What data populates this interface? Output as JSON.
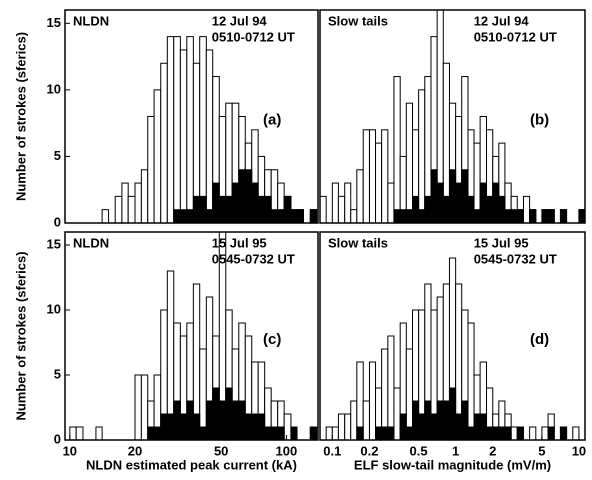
{
  "chart_data": [
    {
      "type": "histogram",
      "label": "NLDN",
      "date": "12 Jul 94",
      "time": "0510-0712 UT",
      "panel": "(a)",
      "ylabel": "Number of strokes (sferics)",
      "xscale": "log",
      "bins": [
        10.0,
        10.7,
        11.5,
        12.3,
        13.2,
        14.1,
        15.1,
        16.2,
        17.4,
        18.6,
        20.0,
        21.4,
        22.9,
        24.5,
        26.3,
        28.2,
        30.2,
        32.4,
        34.7,
        37.2,
        39.8,
        42.7,
        45.7,
        49.0,
        52.5,
        56.2,
        60.3,
        64.6,
        69.2,
        74.1,
        79.4,
        85.1,
        91.2,
        97.7,
        105,
        112,
        120,
        129,
        138
      ],
      "series": [
        {
          "color": "#ffffff",
          "values": [
            0,
            0,
            0,
            0,
            0,
            1,
            0,
            2,
            3,
            2,
            3,
            4,
            8,
            10,
            12,
            14,
            14,
            13,
            14,
            12,
            14,
            13,
            11,
            8,
            9,
            9,
            8,
            6,
            7,
            5,
            4,
            4,
            3,
            2,
            1,
            1,
            0,
            1
          ]
        },
        {
          "color": "#000000",
          "values": [
            0,
            0,
            0,
            0,
            0,
            0,
            0,
            0,
            0,
            0,
            0,
            0,
            0,
            0,
            0,
            0,
            1,
            1,
            1,
            2,
            2,
            1,
            3,
            2,
            2,
            3,
            4,
            4,
            3,
            2,
            2,
            1,
            1,
            2,
            1,
            1,
            0,
            1
          ]
        }
      ],
      "xlim": [
        9.5,
        140
      ],
      "ylim": [
        0,
        16
      ],
      "yticks": [
        0,
        5,
        10,
        15
      ]
    },
    {
      "type": "histogram",
      "label": "Slow tails",
      "date": "12 Jul 94",
      "time": "0510-0712 UT",
      "panel": "(b)",
      "xscale": "log",
      "bins": [
        0.0794,
        0.0891,
        0.1,
        0.112,
        0.126,
        0.141,
        0.158,
        0.178,
        0.2,
        0.224,
        0.251,
        0.282,
        0.316,
        0.355,
        0.398,
        0.447,
        0.501,
        0.562,
        0.631,
        0.708,
        0.794,
        0.891,
        1.0,
        1.12,
        1.26,
        1.41,
        1.58,
        1.78,
        2.0,
        2.24,
        2.51,
        2.82,
        3.16,
        3.55,
        3.98,
        4.47,
        5.01,
        5.62,
        6.31,
        7.08,
        7.94,
        8.91,
        10.0,
        11.2
      ],
      "series": [
        {
          "color": "#ffffff",
          "values": [
            2,
            0,
            3,
            2,
            3,
            1,
            4,
            7,
            7,
            6,
            7,
            3,
            11,
            5,
            9,
            7,
            10,
            11,
            14,
            16,
            12,
            9,
            8,
            11,
            7,
            6,
            8,
            7,
            5,
            6,
            3,
            2,
            1,
            2,
            1,
            0,
            1,
            1,
            0,
            1,
            0,
            0,
            1
          ]
        },
        {
          "color": "#000000",
          "values": [
            0,
            0,
            0,
            0,
            0,
            0,
            0,
            0,
            0,
            0,
            0,
            0,
            1,
            1,
            1,
            2,
            1,
            2,
            4,
            3,
            2,
            4,
            3,
            4,
            2,
            1,
            3,
            2,
            3,
            2,
            1,
            1,
            1,
            0,
            1,
            0,
            1,
            1,
            0,
            1,
            0,
            0,
            1
          ]
        }
      ],
      "xlim": [
        0.0794,
        11.2
      ],
      "ylim": [
        0,
        16
      ]
    },
    {
      "type": "histogram",
      "label": "NLDN",
      "date": "15 Jul 95",
      "time": "0545-0732 UT",
      "panel": "(c)",
      "ylabel": "Number of strokes (sferics)",
      "xlabel": "NLDN estimated peak current (kA)",
      "xscale": "log",
      "bins": [
        10.0,
        10.7,
        11.5,
        12.3,
        13.2,
        14.1,
        15.1,
        16.2,
        17.4,
        18.6,
        20.0,
        21.4,
        22.9,
        24.5,
        26.3,
        28.2,
        30.2,
        32.4,
        34.7,
        37.2,
        39.8,
        42.7,
        45.7,
        49.0,
        52.5,
        56.2,
        60.3,
        64.6,
        69.2,
        74.1,
        79.4,
        85.1,
        91.2,
        97.7,
        105,
        112,
        120,
        129,
        138
      ],
      "series": [
        {
          "color": "#ffffff",
          "values": [
            1,
            1,
            0,
            0,
            1,
            0,
            0,
            0,
            0,
            0,
            5,
            5,
            3,
            5,
            10,
            13,
            9,
            8,
            9,
            12,
            7,
            11,
            8,
            16,
            10,
            7,
            9,
            8,
            6,
            6,
            4,
            3,
            3,
            2,
            1,
            0,
            0,
            1
          ]
        },
        {
          "color": "#000000",
          "values": [
            0,
            0,
            0,
            0,
            0,
            0,
            0,
            0,
            0,
            0,
            0,
            0,
            1,
            1,
            2,
            2,
            3,
            2,
            3,
            2,
            1,
            3,
            4,
            3,
            4,
            3,
            3,
            2,
            2,
            2,
            1,
            1,
            1,
            0,
            1,
            0,
            0,
            1
          ]
        }
      ],
      "xlim": [
        9.5,
        140
      ],
      "ylim": [
        0,
        16
      ],
      "yticks": [
        0,
        5,
        10,
        15
      ],
      "xticks": [
        10,
        20,
        50,
        100
      ]
    },
    {
      "type": "histogram",
      "label": "Slow tails",
      "date": "15 Jul 95",
      "time": "0545-0732 UT",
      "panel": "(d)",
      "xlabel": "ELF slow-tail magnitude (mV/m)",
      "xscale": "log",
      "bins": [
        0.0794,
        0.0891,
        0.1,
        0.112,
        0.126,
        0.141,
        0.158,
        0.178,
        0.2,
        0.224,
        0.251,
        0.282,
        0.316,
        0.355,
        0.398,
        0.447,
        0.501,
        0.562,
        0.631,
        0.708,
        0.794,
        0.891,
        1.0,
        1.12,
        1.26,
        1.41,
        1.58,
        1.78,
        2.0,
        2.24,
        2.51,
        2.82,
        3.16,
        3.55,
        3.98,
        4.47,
        5.01,
        5.62,
        6.31,
        7.08,
        7.94,
        8.91,
        10.0,
        11.2
      ],
      "series": [
        {
          "color": "#ffffff",
          "values": [
            0,
            1,
            1,
            2,
            2,
            3,
            6,
            3,
            6,
            4,
            7,
            8,
            4,
            9,
            7,
            10,
            10,
            12,
            10,
            11,
            12,
            14,
            12,
            10,
            9,
            5,
            6,
            4,
            2,
            3,
            2,
            1,
            1,
            0,
            1,
            0,
            1,
            2,
            0,
            1,
            0,
            1,
            0
          ]
        },
        {
          "color": "#000000",
          "values": [
            0,
            0,
            0,
            0,
            0,
            0,
            1,
            0,
            0,
            1,
            1,
            1,
            0,
            2,
            1,
            3,
            2,
            3,
            2,
            3,
            3,
            4,
            2,
            3,
            1,
            2,
            2,
            1,
            1,
            1,
            1,
            0,
            1,
            0,
            0,
            0,
            0,
            1,
            0,
            1,
            0,
            0,
            0
          ]
        }
      ],
      "xlim": [
        0.0794,
        11.2
      ],
      "ylim": [
        0,
        16
      ],
      "xticks": [
        0.1,
        0.2,
        0.5,
        1,
        2,
        5,
        10
      ]
    }
  ]
}
